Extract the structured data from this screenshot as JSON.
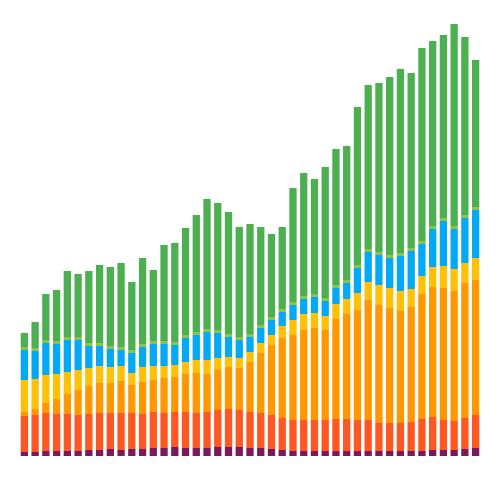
{
  "chart_data": {
    "type": "stacked_bar",
    "stacked": true,
    "ylim": [
      0,
      440
    ],
    "series": [
      {
        "color": "#7a1a5c",
        "values": [
          4,
          4,
          5,
          5,
          5,
          5,
          6,
          6,
          7,
          6,
          7,
          7,
          8,
          8,
          9,
          8,
          8,
          8,
          9,
          9,
          9,
          8,
          8,
          7,
          6,
          5,
          5,
          5,
          5,
          5,
          5,
          5,
          5,
          5,
          5,
          5,
          5,
          5,
          6,
          6,
          6,
          7,
          8
        ]
      },
      {
        "color": "#ff5722",
        "values": [
          36,
          37,
          38,
          37,
          37,
          36,
          36,
          37,
          36,
          37,
          36,
          35,
          36,
          35,
          35,
          36,
          35,
          36,
          37,
          38,
          37,
          36,
          35,
          34,
          32,
          31,
          31,
          31,
          31,
          32,
          32,
          31,
          31,
          28,
          28,
          28,
          29,
          32,
          33,
          30,
          29,
          31,
          33
        ]
      },
      {
        "color": "#ff9800",
        "values": [
          4,
          6,
          10,
          15,
          20,
          25,
          28,
          30,
          30,
          32,
          28,
          32,
          32,
          35,
          35,
          38,
          40,
          38,
          40,
          42,
          42,
          50,
          60,
          70,
          80,
          85,
          90,
          92,
          90,
          100,
          105,
          110,
          120,
          118,
          115,
          112,
          115,
          125,
          130,
          132,
          130,
          135,
          135
        ]
      },
      {
        "color": "#ffc107",
        "values": [
          32,
          30,
          28,
          25,
          22,
          20,
          18,
          17,
          16,
          15,
          12,
          15,
          14,
          12,
          12,
          12,
          13,
          14,
          12,
          10,
          10,
          10,
          10,
          10,
          12,
          15,
          16,
          15,
          14,
          15,
          15,
          17,
          18,
          20,
          20,
          20,
          18,
          18,
          20,
          22,
          22,
          20,
          22
        ]
      },
      {
        "color": "#03a9f4",
        "values": [
          30,
          28,
          32,
          30,
          32,
          30,
          22,
          20,
          18,
          16,
          20,
          20,
          22,
          22,
          20,
          24,
          25,
          28,
          25,
          20,
          18,
          15,
          15,
          15,
          14,
          15,
          15,
          16,
          15,
          16,
          16,
          25,
          30,
          30,
          30,
          35,
          38,
          32,
          38,
          45,
          40,
          45,
          48
        ]
      },
      {
        "color": "#8bc34a",
        "values": [
          3,
          3,
          3,
          3,
          3,
          3,
          3,
          3,
          3,
          3,
          3,
          3,
          3,
          3,
          3,
          3,
          3,
          3,
          3,
          3,
          3,
          3,
          3,
          3,
          3,
          3,
          3,
          3,
          3,
          3,
          3,
          3,
          3,
          3,
          3,
          3,
          3,
          3,
          3,
          3,
          3,
          3,
          3
        ]
      },
      {
        "color": "#4caf50",
        "values": [
          14,
          26,
          46,
          51,
          66,
          63,
          72,
          78,
          79,
          84,
          68,
          86,
          71,
          96,
          99,
          107,
          117,
          130,
          127,
          122,
          110,
          110,
          98,
          83,
          82,
          114,
          123,
          115,
          131,
          136,
          134,
          158,
          164,
          169,
          178,
          184,
          175,
          193,
          185,
          183,
          202,
          178,
          147
        ]
      }
    ]
  }
}
